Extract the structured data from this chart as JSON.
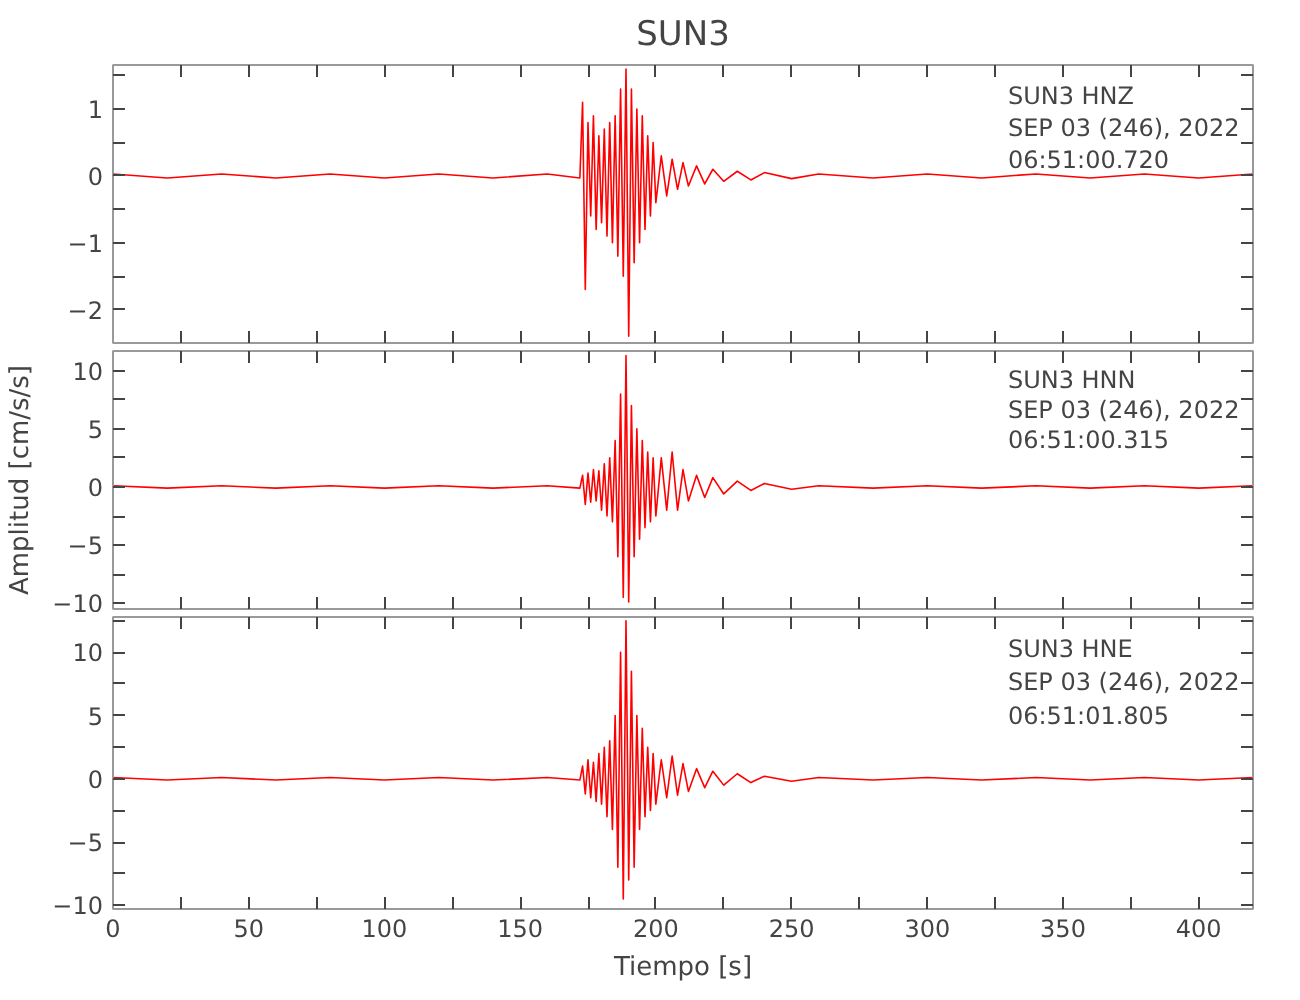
{
  "chart_data": [
    {
      "type": "line",
      "title": "SUN3",
      "annotations": [
        "SUN3   HNZ",
        "SEP 03 (246), 2022",
        "06:51:00.720"
      ],
      "tick_labels": "y",
      "grid": false,
      "line_style": "solid",
      "marker": "none",
      "x": [
        0,
        20,
        40,
        60,
        80,
        100,
        120,
        140,
        160,
        172,
        173,
        174,
        175,
        176,
        177,
        178,
        179,
        180,
        181,
        182,
        183,
        184,
        185,
        186,
        187,
        188,
        189,
        190,
        191,
        192,
        193,
        194,
        195,
        196,
        197,
        198,
        199,
        200,
        202,
        204,
        206,
        208,
        210,
        212,
        215,
        218,
        221,
        225,
        230,
        235,
        240,
        250,
        260,
        280,
        300,
        320,
        340,
        360,
        380,
        400,
        420
      ],
      "xlim": [
        0,
        420
      ],
      "xticks": [
        0,
        {
          "value": 25,
          "label": null
        },
        50,
        {
          "value": 75,
          "label": null
        },
        100,
        {
          "value": 125,
          "label": null
        },
        150,
        {
          "value": 175,
          "label": null
        },
        200,
        {
          "value": 225,
          "label": null
        },
        250,
        {
          "value": 275,
          "label": null
        },
        300,
        {
          "value": 325,
          "label": null
        },
        350,
        {
          "value": 375,
          "label": null
        },
        400
      ],
      "ylim": [
        -2.5,
        1.66
      ],
      "yticks": [
        -2,
        {
          "value": -1.5,
          "label": null
        },
        -1,
        {
          "value": -0.5,
          "label": null
        },
        0,
        {
          "value": 0.5,
          "label": null
        },
        1,
        {
          "value": 1.5,
          "label": null
        }
      ],
      "series": [
        {
          "color": "#ff0000",
          "values": [
            0.03,
            -0.03,
            0.03,
            -0.03,
            0.03,
            -0.03,
            0.03,
            -0.03,
            0.03,
            -0.03,
            1.1,
            -1.7,
            0.8,
            -0.6,
            0.9,
            -0.8,
            0.6,
            -0.7,
            0.7,
            -0.9,
            0.8,
            -1.0,
            0.9,
            -1.2,
            1.3,
            -1.5,
            1.6,
            -2.4,
            1.3,
            -1.3,
            1.0,
            -1.0,
            0.9,
            -0.8,
            0.6,
            -0.6,
            0.5,
            -0.4,
            0.3,
            -0.3,
            0.25,
            -0.2,
            0.2,
            -0.15,
            0.15,
            -0.12,
            0.1,
            -0.08,
            0.07,
            -0.06,
            0.05,
            -0.04,
            0.03,
            -0.03,
            0.03,
            -0.03,
            0.03,
            -0.03,
            0.03,
            -0.03,
            0.03
          ]
        }
      ]
    },
    {
      "type": "line",
      "ylabel": "Amplitud [cm/s/s]",
      "annotations": [
        "SUN3   HNN",
        "SEP 03 (246), 2022",
        "06:51:00.315"
      ],
      "tick_labels": "y",
      "grid": false,
      "line_style": "solid",
      "marker": "none",
      "x": [
        0,
        20,
        40,
        60,
        80,
        100,
        120,
        140,
        160,
        172,
        173,
        174,
        175,
        176,
        177,
        178,
        179,
        180,
        181,
        182,
        183,
        184,
        185,
        186,
        187,
        188,
        189,
        190,
        191,
        192,
        193,
        194,
        195,
        196,
        197,
        198,
        199,
        200,
        202,
        204,
        206,
        208,
        210,
        212,
        215,
        218,
        221,
        225,
        230,
        235,
        240,
        250,
        260,
        280,
        300,
        320,
        340,
        360,
        380,
        400,
        420
      ],
      "xlim": [
        0,
        420
      ],
      "xticks": [
        0,
        {
          "value": 25,
          "label": null
        },
        50,
        {
          "value": 75,
          "label": null
        },
        100,
        {
          "value": 125,
          "label": null
        },
        150,
        {
          "value": 175,
          "label": null
        },
        200,
        {
          "value": 225,
          "label": null
        },
        250,
        {
          "value": 275,
          "label": null
        },
        300,
        {
          "value": 325,
          "label": null
        },
        350,
        {
          "value": 375,
          "label": null
        },
        400
      ],
      "ylim": [
        -10.5,
        11.7
      ],
      "yticks": [
        -10,
        {
          "value": -7.5,
          "label": null
        },
        -5,
        {
          "value": -2.5,
          "label": null
        },
        0,
        {
          "value": 2.5,
          "label": null
        },
        5,
        {
          "value": 7.5,
          "label": null
        },
        10
      ],
      "series": [
        {
          "color": "#ff0000",
          "values": [
            0.1,
            -0.1,
            0.1,
            -0.1,
            0.1,
            -0.1,
            0.1,
            -0.1,
            0.1,
            -0.1,
            1.0,
            -1.5,
            1.2,
            -1.3,
            1.5,
            -1.2,
            1.4,
            -2.0,
            2.0,
            -2.5,
            2.5,
            -3.0,
            4.0,
            -6.0,
            8.0,
            -9.5,
            11.3,
            -9.9,
            7.0,
            -6.0,
            5.0,
            -4.5,
            4.0,
            -3.5,
            3.0,
            -3.0,
            2.5,
            -2.5,
            2.5,
            -2.0,
            3.0,
            -2.0,
            1.5,
            -1.2,
            1.0,
            -0.9,
            0.8,
            -0.6,
            0.5,
            -0.3,
            0.3,
            -0.2,
            0.1,
            -0.1,
            0.1,
            -0.1,
            0.1,
            -0.1,
            0.1,
            -0.1,
            0.1
          ]
        }
      ]
    },
    {
      "type": "line",
      "xlabel": "Tiempo [s]",
      "annotations": [
        "SUN3   HNE",
        "SEP 03 (246), 2022",
        "06:51:01.805"
      ],
      "grid": false,
      "line_style": "solid",
      "marker": "none",
      "x": [
        0,
        20,
        40,
        60,
        80,
        100,
        120,
        140,
        160,
        172,
        173,
        174,
        175,
        176,
        177,
        178,
        179,
        180,
        181,
        182,
        183,
        184,
        185,
        186,
        187,
        188,
        189,
        190,
        191,
        192,
        193,
        194,
        195,
        196,
        197,
        198,
        199,
        200,
        202,
        204,
        206,
        208,
        210,
        212,
        215,
        218,
        221,
        225,
        230,
        235,
        240,
        250,
        260,
        280,
        300,
        320,
        340,
        360,
        380,
        400,
        420
      ],
      "xlim": [
        0,
        420
      ],
      "xticks": [
        0,
        {
          "value": 25,
          "label": null
        },
        50,
        {
          "value": 75,
          "label": null
        },
        100,
        {
          "value": 125,
          "label": null
        },
        150,
        {
          "value": 175,
          "label": null
        },
        200,
        {
          "value": 225,
          "label": null
        },
        250,
        {
          "value": 275,
          "label": null
        },
        300,
        {
          "value": 325,
          "label": null
        },
        350,
        {
          "value": 375,
          "label": null
        },
        400
      ],
      "ylim": [
        -10.3,
        12.8
      ],
      "yticks": [
        -10,
        {
          "value": -7.5,
          "label": null
        },
        -5,
        {
          "value": -2.5,
          "label": null
        },
        0,
        {
          "value": 2.5,
          "label": null
        },
        5,
        {
          "value": 7.5,
          "label": null
        },
        10,
        {
          "value": 12.5,
          "label": null
        }
      ],
      "series": [
        {
          "color": "#ff0000",
          "values": [
            0.1,
            -0.1,
            0.1,
            -0.1,
            0.1,
            -0.1,
            0.1,
            -0.1,
            0.1,
            -0.1,
            1.0,
            -1.2,
            1.5,
            -1.5,
            1.3,
            -1.8,
            2.0,
            -2.0,
            2.5,
            -3.0,
            3.0,
            -4.0,
            5.0,
            -7.0,
            10.0,
            -9.5,
            12.5,
            -8.0,
            8.5,
            -7.0,
            5.0,
            -4.0,
            4.0,
            -3.0,
            2.5,
            -2.5,
            2.0,
            -2.0,
            1.5,
            -1.5,
            1.8,
            -1.3,
            1.2,
            -1.0,
            0.8,
            -0.7,
            0.6,
            -0.5,
            0.4,
            -0.3,
            0.2,
            -0.2,
            0.1,
            -0.1,
            0.1,
            -0.1,
            0.1,
            -0.1,
            0.1,
            -0.1,
            0.1
          ]
        }
      ]
    }
  ]
}
